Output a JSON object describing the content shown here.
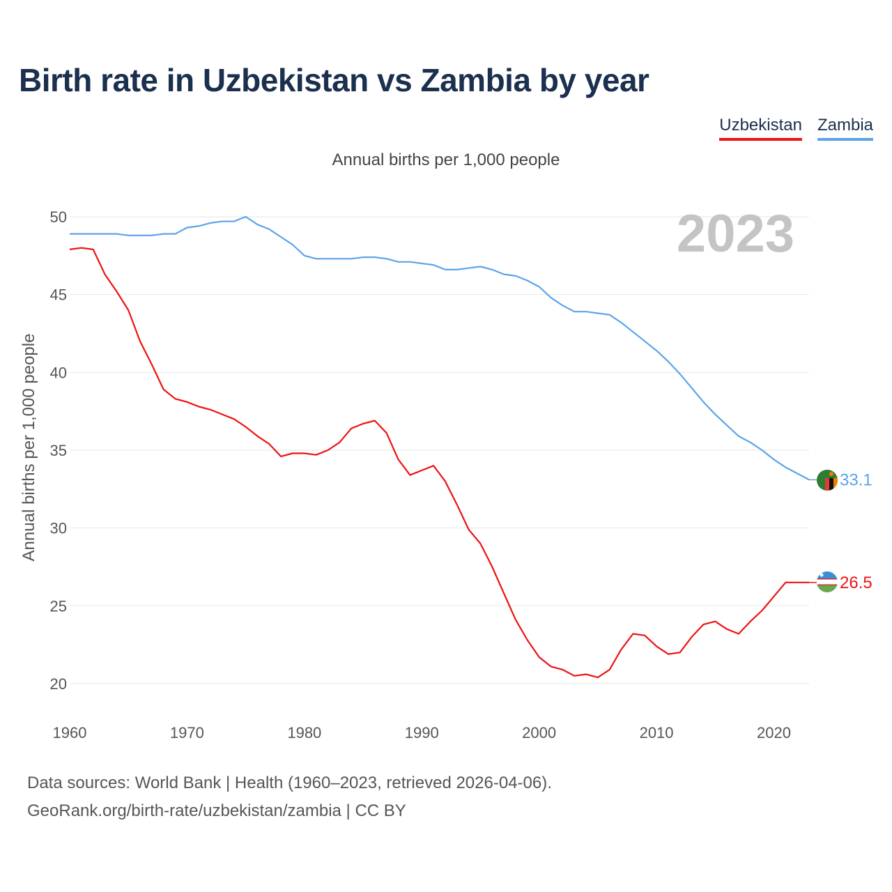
{
  "title": "Birth rate in Uzbekistan vs Zambia by year",
  "subtitle": "Annual births per 1,000 people",
  "legend": [
    {
      "label": "Uzbekistan",
      "color": "#ee1111"
    },
    {
      "label": "Zambia",
      "color": "#5ba4e8"
    }
  ],
  "year_label": "2023",
  "source": {
    "line1": "Data sources: World Bank | Health (1960–2023, retrieved 2026-04-06).",
    "line2": "GeoRank.org/birth-rate/uzbekistan/zambia | CC BY"
  },
  "chart_data": {
    "type": "line",
    "title": "Birth rate in Uzbekistan vs Zambia by year",
    "xlabel": "",
    "ylabel": "Annual births per 1,000 people",
    "xlim": [
      1960,
      2023
    ],
    "ylim": [
      18,
      52
    ],
    "yticks": [
      20,
      25,
      30,
      35,
      40,
      45,
      50
    ],
    "xticks": [
      1960,
      1970,
      1980,
      1990,
      2000,
      2010,
      2020
    ],
    "grid": true,
    "legend": "top-right",
    "x_start": 1960,
    "series": [
      {
        "name": "Uzbekistan",
        "color": "#ee1111",
        "end_label": "26.5",
        "values": [
          47.9,
          48.0,
          47.9,
          46.3,
          45.2,
          44.0,
          42.0,
          40.5,
          38.9,
          38.3,
          38.1,
          37.8,
          37.6,
          37.3,
          37.0,
          36.5,
          35.9,
          35.4,
          34.6,
          34.8,
          34.8,
          34.7,
          35.0,
          35.5,
          36.4,
          36.7,
          36.9,
          36.1,
          34.4,
          33.4,
          33.7,
          34.0,
          33.0,
          31.5,
          29.9,
          29.0,
          27.5,
          25.8,
          24.1,
          22.8,
          21.7,
          21.1,
          20.9,
          20.5,
          20.6,
          20.4,
          20.9,
          22.2,
          23.2,
          23.1,
          22.4,
          21.9,
          22.0,
          23.0,
          23.8,
          24.0,
          23.5,
          23.2,
          24.0,
          24.7,
          25.6,
          26.5,
          26.5,
          26.5
        ]
      },
      {
        "name": "Zambia",
        "color": "#5ba4e8",
        "end_label": "33.1",
        "values": [
          48.9,
          48.9,
          48.9,
          48.9,
          48.9,
          48.8,
          48.8,
          48.8,
          48.9,
          48.9,
          49.3,
          49.4,
          49.6,
          49.7,
          49.7,
          50.0,
          49.5,
          49.2,
          48.7,
          48.2,
          47.5,
          47.3,
          47.3,
          47.3,
          47.3,
          47.4,
          47.4,
          47.3,
          47.1,
          47.1,
          47.0,
          46.9,
          46.6,
          46.6,
          46.7,
          46.8,
          46.6,
          46.3,
          46.2,
          45.9,
          45.5,
          44.8,
          44.3,
          43.9,
          43.9,
          43.8,
          43.7,
          43.2,
          42.6,
          42.0,
          41.4,
          40.7,
          39.9,
          39.0,
          38.1,
          37.3,
          36.6,
          35.9,
          35.5,
          35.0,
          34.4,
          33.9,
          33.5,
          33.1
        ]
      }
    ]
  }
}
